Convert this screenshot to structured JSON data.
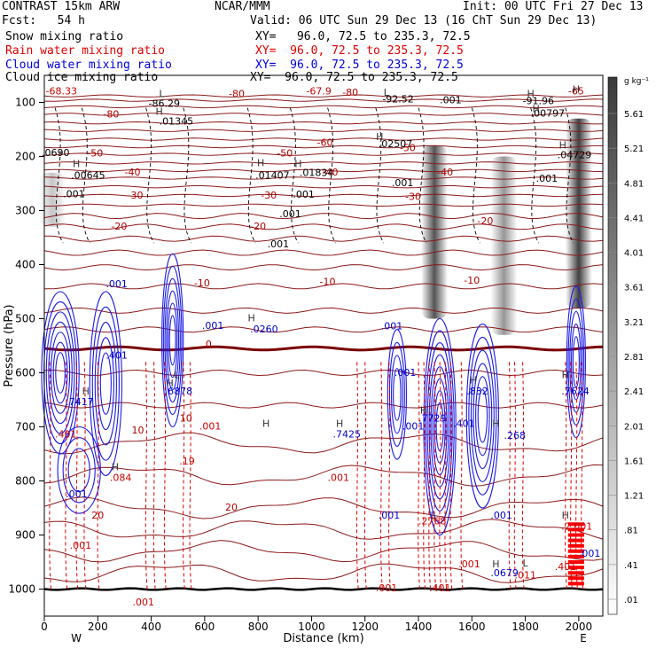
{
  "header": {
    "model": "CONTRAST 15km ARW",
    "forecast": "Fcst:   54 h",
    "center": "NCAR/MMM",
    "init": "Init: 00 UTC Fri 27 Dec 13",
    "valid": "Valid: 06 UTC Sun 29 Dec 13 (16 ChT Sun 29 Dec 13)",
    "xy_line": "XY=  96.0, 72.5 to 235.3, 72.5",
    "line_label_snow": "XY=   96.0, 72.5 to 235.3, 72.5",
    "line_label_rain": "XY=  96.0, 72.5 to 235.3, 72.5",
    "line_label_cloud": "XY=  96.0, 72.5 to 235.3, 72.5",
    "line_label_ice": "XY=  96.0, 72.5 to 235.3, 72.5"
  },
  "legend": [
    {
      "label": "Snow mixing ratio",
      "color": "#000000"
    },
    {
      "label": "Rain water mixing ratio",
      "color": "#e00000"
    },
    {
      "label": "Cloud water mixing ratio",
      "color": "#0000e0"
    },
    {
      "label": "Cloud ice mixing ratio",
      "color": "#000000"
    }
  ],
  "colorbar": {
    "unit": "g kg⁻¹",
    "levels": [
      "5.61",
      "5.21",
      "4.81",
      "4.41",
      "4.01",
      "3.61",
      "3.21",
      "2.81",
      "2.41",
      "2.01",
      "1.61",
      "1.21",
      ".81",
      ".41",
      ".01"
    ]
  },
  "chart_data": {
    "type": "heatmap",
    "title": "",
    "xlabel": "Distance (km)",
    "ylabel": "Pressure (hPa)",
    "xlim": [
      0,
      2090
    ],
    "ylim": [
      1050,
      50
    ],
    "x_ticks": [
      0,
      200,
      400,
      600,
      800,
      1000,
      1200,
      1400,
      1600,
      1800,
      2000
    ],
    "y_ticks": [
      100,
      200,
      300,
      400,
      500,
      600,
      700,
      800,
      900,
      1000
    ],
    "x_end_labels": {
      "west": "W",
      "east": "E"
    },
    "snow_shading_columns": [
      {
        "x": 1460,
        "pmin": 180,
        "pmax": 500,
        "intensity": 0.9
      },
      {
        "x": 1720,
        "pmin": 200,
        "pmax": 530,
        "intensity": 0.55
      },
      {
        "x": 2000,
        "pmin": 130,
        "pmax": 480,
        "intensity": 1.0
      },
      {
        "x": 30,
        "pmin": 230,
        "pmax": 330,
        "intensity": 0.3
      }
    ],
    "temperature_contours": [
      {
        "label": "-80",
        "x": 250,
        "p": 128
      },
      {
        "label": "-80",
        "x": 720,
        "p": 90
      },
      {
        "label": "-80",
        "x": 1145,
        "p": 88
      },
      {
        "label": "-65",
        "x": 1990,
        "p": 85
      },
      {
        "label": "-60",
        "x": 1050,
        "p": 180
      },
      {
        "label": "-50",
        "x": 190,
        "p": 200
      },
      {
        "label": "-50",
        "x": 900,
        "p": 200
      },
      {
        "label": "-50",
        "x": 1360,
        "p": 190
      },
      {
        "label": "-40",
        "x": 330,
        "p": 235
      },
      {
        "label": "-40",
        "x": 1070,
        "p": 235
      },
      {
        "label": "-40",
        "x": 1500,
        "p": 235
      },
      {
        "label": "-30",
        "x": 340,
        "p": 278
      },
      {
        "label": "-30",
        "x": 840,
        "p": 278
      },
      {
        "label": "-30",
        "x": 1380,
        "p": 280
      },
      {
        "label": "-20",
        "x": 280,
        "p": 335
      },
      {
        "label": "-20",
        "x": 800,
        "p": 335
      },
      {
        "label": "-20",
        "x": 1650,
        "p": 325
      },
      {
        "label": "-10",
        "x": 590,
        "p": 440
      },
      {
        "label": "-10",
        "x": 1060,
        "p": 438
      },
      {
        "label": "-10",
        "x": 1600,
        "p": 435
      },
      {
        "label": "0",
        "x": 615,
        "p": 553
      },
      {
        "label": "10",
        "x": 350,
        "p": 712
      },
      {
        "label": "10",
        "x": 530,
        "p": 690
      },
      {
        "label": "20",
        "x": 200,
        "p": 870
      },
      {
        "label": "20",
        "x": 700,
        "p": 855
      }
    ],
    "minima_maxima": [
      {
        "type": "L",
        "x": 440,
        "p": 90
      },
      {
        "type": "L",
        "x": 1280,
        "p": 88
      },
      {
        "type": "H",
        "x": 1820,
        "p": 90
      },
      {
        "type": "H",
        "x": 1990,
        "p": 82
      },
      {
        "type": "H",
        "x": 430,
        "p": 123
      },
      {
        "type": "H",
        "x": 1255,
        "p": 170
      },
      {
        "type": "H",
        "x": 950,
        "p": 220
      },
      {
        "type": "H",
        "x": 120,
        "p": 220
      },
      {
        "type": "H",
        "x": 810,
        "p": 218
      },
      {
        "type": "H",
        "x": 1940,
        "p": 185
      },
      {
        "type": "H",
        "x": 1840,
        "p": 118
      },
      {
        "type": "H",
        "x": 775,
        "p": 505
      },
      {
        "type": "H",
        "x": 470,
        "p": 625
      },
      {
        "type": "H",
        "x": 1605,
        "p": 620
      },
      {
        "type": "H",
        "x": 1420,
        "p": 675
      },
      {
        "type": "H",
        "x": 1950,
        "p": 610
      },
      {
        "type": "H",
        "x": 1105,
        "p": 700
      },
      {
        "type": "H",
        "x": 155,
        "p": 640
      },
      {
        "type": "H",
        "x": 830,
        "p": 700
      },
      {
        "type": "H",
        "x": 265,
        "p": 780
      },
      {
        "type": "H",
        "x": 1690,
        "p": 700
      },
      {
        "type": "H",
        "x": 1950,
        "p": 870
      },
      {
        "type": "H",
        "x": 1690,
        "p": 960
      },
      {
        "type": "L",
        "x": 1800,
        "p": 958
      },
      {
        "type": "L",
        "x": 1455,
        "p": 870
      },
      {
        "type": "L",
        "x": 495,
        "p": 610
      }
    ],
    "value_labels": [
      {
        "text": "-68.33",
        "x": 5,
        "p": 85,
        "color": "#cc0000"
      },
      {
        "text": "-86.29",
        "x": 390,
        "p": 108,
        "color": "#000000"
      },
      {
        "text": "-67.9",
        "x": 980,
        "p": 85,
        "color": "#cc0000"
      },
      {
        "text": "-92.52",
        "x": 1265,
        "p": 100,
        "color": "#000000"
      },
      {
        "text": ".001",
        "x": 1480,
        "p": 102,
        "color": "#000000"
      },
      {
        "text": "-91.96",
        "x": 1790,
        "p": 103,
        "color": "#000000"
      },
      {
        "text": ".00797",
        "x": 1820,
        "p": 126,
        "color": "#000000"
      },
      {
        "text": ".01345",
        "x": 430,
        "p": 141,
        "color": "#000000"
      },
      {
        "text": ".02507",
        "x": 1250,
        "p": 183,
        "color": "#000000"
      },
      {
        "text": ".04729",
        "x": 1920,
        "p": 203,
        "color": "#000000"
      },
      {
        "text": ".0690",
        "x": -10,
        "p": 199,
        "color": "#000000"
      },
      {
        "text": ".01834",
        "x": 955,
        "p": 236,
        "color": "#000000"
      },
      {
        "text": ".00645",
        "x": 100,
        "p": 241,
        "color": "#000000"
      },
      {
        "text": ".01407",
        "x": 790,
        "p": 241,
        "color": "#000000"
      },
      {
        "text": ".001",
        "x": 1840,
        "p": 247,
        "color": "#000000"
      },
      {
        "text": ".001",
        "x": 1300,
        "p": 255,
        "color": "#000000"
      },
      {
        "text": ".001",
        "x": 930,
        "p": 276,
        "color": "#000000"
      },
      {
        "text": ".001",
        "x": 70,
        "p": 275,
        "color": "#000000"
      },
      {
        "text": ".001",
        "x": 880,
        "p": 312,
        "color": "#000000"
      },
      {
        "text": ".001",
        "x": 835,
        "p": 368,
        "color": "#000000"
      },
      {
        "text": ".001",
        "x": 230,
        "p": 442,
        "color": "#0000cc"
      },
      {
        "text": ".001",
        "x": 590,
        "p": 519,
        "color": "#0000cc"
      },
      {
        "text": ".0260",
        "x": 770,
        "p": 525,
        "color": "#0000cc"
      },
      {
        "text": ".001",
        "x": 1260,
        "p": 520,
        "color": "#0000cc"
      },
      {
        "text": ".401",
        "x": 230,
        "p": 574,
        "color": "#0000cc"
      },
      {
        "text": ".001",
        "x": 1310,
        "p": 606,
        "color": "#0000cc"
      },
      {
        "text": ".6878",
        "x": 450,
        "p": 640,
        "color": "#0000cc"
      },
      {
        "text": ".7417",
        "x": 80,
        "p": 660,
        "color": "#0000cc"
      },
      {
        "text": ".832",
        "x": 1580,
        "p": 640,
        "color": "#0000cc"
      },
      {
        "text": ".7729",
        "x": 1400,
        "p": 690,
        "color": "#0000cc"
      },
      {
        "text": ".7624",
        "x": 1935,
        "p": 640,
        "color": "#0000cc"
      },
      {
        "text": ".001",
        "x": 1340,
        "p": 705,
        "color": "#0000cc"
      },
      {
        "text": ".401",
        "x": 1530,
        "p": 700,
        "color": "#0000cc"
      },
      {
        "text": ".7425",
        "x": 1080,
        "p": 720,
        "color": "#0000cc"
      },
      {
        "text": ".001",
        "x": 580,
        "p": 705,
        "color": "#cc0000"
      },
      {
        "text": ".001",
        "x": 1060,
        "p": 800,
        "color": "#cc0000"
      },
      {
        "text": ".268",
        "x": 1720,
        "p": 722,
        "color": "#0000cc"
      },
      {
        "text": ".401",
        "x": 40,
        "p": 720,
        "color": "#cc0000"
      },
      {
        "text": ".19",
        "x": 505,
        "p": 770,
        "color": "#cc0000"
      },
      {
        "text": ".084",
        "x": 245,
        "p": 800,
        "color": "#cc0000"
      },
      {
        "text": ".001",
        "x": 80,
        "p": 830,
        "color": "#0000cc"
      },
      {
        "text": ".001",
        "x": 1250,
        "p": 870,
        "color": "#0000cc"
      },
      {
        "text": ".001",
        "x": 1670,
        "p": 870,
        "color": "#0000cc"
      },
      {
        "text": ".2768",
        "x": 1400,
        "p": 880,
        "color": "#cc0000"
      },
      {
        "text": ".2.001",
        "x": 1935,
        "p": 890,
        "color": "#cc0000"
      },
      {
        "text": ".001",
        "x": 95,
        "p": 925,
        "color": "#cc0000"
      },
      {
        "text": ".001",
        "x": 1550,
        "p": 960,
        "color": "#cc0000"
      },
      {
        "text": ".001",
        "x": 2000,
        "p": 940,
        "color": "#0000cc"
      },
      {
        "text": ".0679",
        "x": 1670,
        "p": 976,
        "color": "#0000cc"
      },
      {
        "text": ".011",
        "x": 1760,
        "p": 980,
        "color": "#cc0000"
      },
      {
        "text": ".401",
        "x": 1910,
        "p": 965,
        "color": "#cc0000"
      },
      {
        "text": ".001",
        "x": 1240,
        "p": 1004,
        "color": "#cc0000"
      },
      {
        "text": ".401",
        "x": 1440,
        "p": 1004,
        "color": "#cc0000"
      },
      {
        "text": ".001",
        "x": 330,
        "p": 1030,
        "color": "#cc0000"
      }
    ]
  }
}
